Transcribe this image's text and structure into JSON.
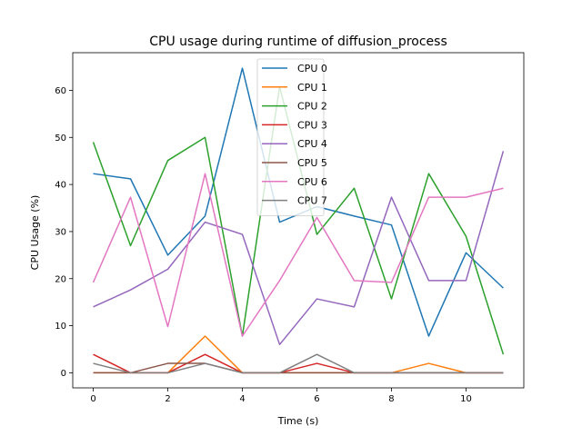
{
  "chart_data": {
    "type": "line",
    "title": "CPU usage during runtime of diffusion_process",
    "xlabel": "Time (s)",
    "ylabel": "CPU Usage (%)",
    "xlim": [
      -0.55,
      11.55
    ],
    "ylim": [
      -3.2,
      68.0
    ],
    "xticks": [
      0,
      2,
      4,
      6,
      8,
      10
    ],
    "yticks": [
      0,
      10,
      20,
      30,
      40,
      50,
      60
    ],
    "grid": false,
    "legend_position": "top-center",
    "x": [
      0,
      1,
      2,
      3,
      4,
      5,
      6,
      7,
      8,
      9,
      10,
      11
    ],
    "series": [
      {
        "name": "CPU 0",
        "color": "#1f77b4",
        "values": [
          42.3,
          41.2,
          25.0,
          33.3,
          64.7,
          32.0,
          35.3,
          33.3,
          31.4,
          7.8,
          25.5,
          18.0
        ]
      },
      {
        "name": "CPU 1",
        "color": "#ff7f0e",
        "values": [
          0.0,
          0.0,
          0.0,
          7.8,
          0.0,
          0.0,
          0.0,
          0.0,
          0.0,
          2.0,
          0.0,
          0.0
        ]
      },
      {
        "name": "CPU 2",
        "color": "#2ca02c",
        "values": [
          49.0,
          27.0,
          45.1,
          50.0,
          7.8,
          60.8,
          29.4,
          39.2,
          15.7,
          42.3,
          29.0,
          3.9
        ]
      },
      {
        "name": "CPU 3",
        "color": "#d62728",
        "values": [
          3.9,
          0.0,
          0.0,
          3.9,
          0.0,
          0.0,
          2.0,
          0.0,
          0.0,
          0.0,
          0.0,
          0.0
        ]
      },
      {
        "name": "CPU 4",
        "color": "#9467bd",
        "values": [
          14.0,
          17.6,
          22.0,
          32.0,
          29.4,
          6.0,
          15.7,
          14.0,
          37.3,
          19.6,
          19.6,
          47.1
        ]
      },
      {
        "name": "CPU 5",
        "color": "#8c564b",
        "values": [
          0.0,
          0.0,
          2.0,
          2.0,
          0.0,
          0.0,
          0.0,
          0.0,
          0.0,
          0.0,
          0.0,
          0.0
        ]
      },
      {
        "name": "CPU 6",
        "color": "#e377c2",
        "values": [
          19.2,
          37.3,
          9.8,
          42.3,
          7.8,
          19.6,
          33.0,
          19.6,
          19.2,
          37.3,
          37.3,
          39.2
        ]
      },
      {
        "name": "CPU 7",
        "color": "#7f7f7f",
        "values": [
          2.0,
          0.0,
          0.0,
          2.0,
          0.0,
          0.0,
          3.9,
          0.0,
          0.0,
          0.0,
          0.0,
          0.0
        ]
      }
    ]
  }
}
